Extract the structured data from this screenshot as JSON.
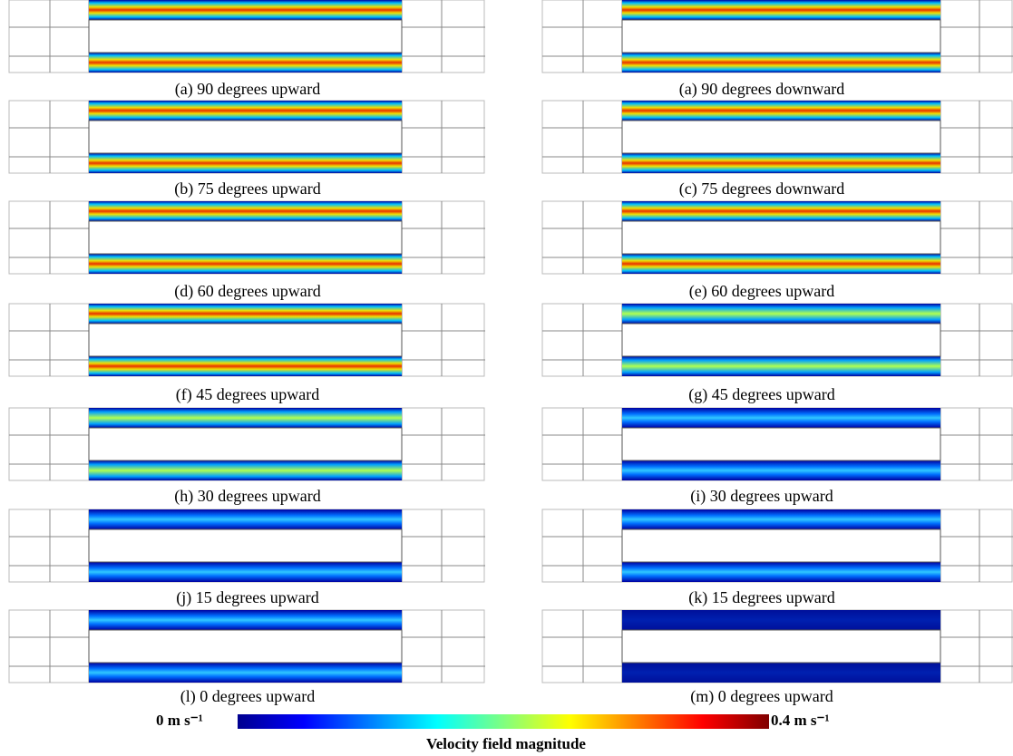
{
  "panels": [
    {
      "caption": "(a) 90 degrees upward"
    },
    {
      "caption": "(a) 90 degrees downward"
    },
    {
      "caption": "(b) 75 degrees upward"
    },
    {
      "caption": "(c) 75 degrees downward"
    },
    {
      "caption": "(d) 60 degrees upward"
    },
    {
      "caption": "(e) 60 degrees upward"
    },
    {
      "caption": "(f) 45 degrees upward"
    },
    {
      "caption": "(g) 45 degrees upward"
    },
    {
      "caption": "(h) 30 degrees upward"
    },
    {
      "caption": "(i) 30 degrees upward"
    },
    {
      "caption": "(j) 15 degrees upward"
    },
    {
      "caption": "(k) 15 degrees upward"
    },
    {
      "caption": "(l) 0 degrees upward"
    },
    {
      "caption": "(m) 0 degrees upward"
    }
  ],
  "colorbar": {
    "min_label": "0 m s⁻¹",
    "max_label": "0.4 m s⁻¹",
    "title": "Velocity field magnitude"
  }
}
